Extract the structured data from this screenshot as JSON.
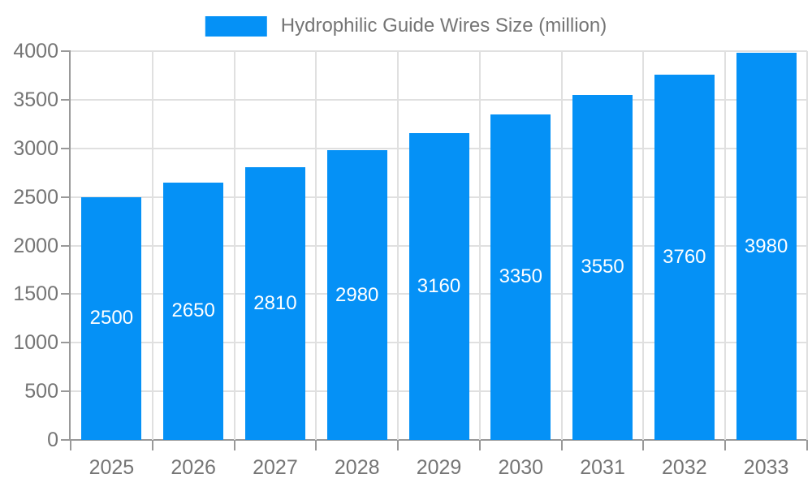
{
  "colors": {
    "bar": "#0591F6",
    "bar_label": "#FFFFFF",
    "axis": "#999999",
    "grid": "#E0E0E0",
    "tick_text": "#757575",
    "background": "#FFFFFF"
  },
  "chart_data": {
    "type": "bar",
    "title": "Hydrophilic Guide Wires Size (million)",
    "categories": [
      "2025",
      "2026",
      "2027",
      "2028",
      "2029",
      "2030",
      "2031",
      "2032",
      "2033"
    ],
    "values": [
      2500,
      2650,
      2810,
      2980,
      3160,
      3350,
      3550,
      3760,
      3980
    ],
    "bar_labels": [
      "2500",
      "2650",
      "2810",
      "2980",
      "3160",
      "3350",
      "3550",
      "3760",
      "3980"
    ],
    "xlabel": "",
    "ylabel": "",
    "ylim": [
      0,
      4000
    ],
    "yticks": [
      0,
      500,
      1000,
      1500,
      2000,
      2500,
      3000,
      3500,
      4000
    ],
    "grid": true,
    "legend_position": "top",
    "bar_label_color": "#FFFFFF",
    "bar_label_position": "center-inside"
  }
}
